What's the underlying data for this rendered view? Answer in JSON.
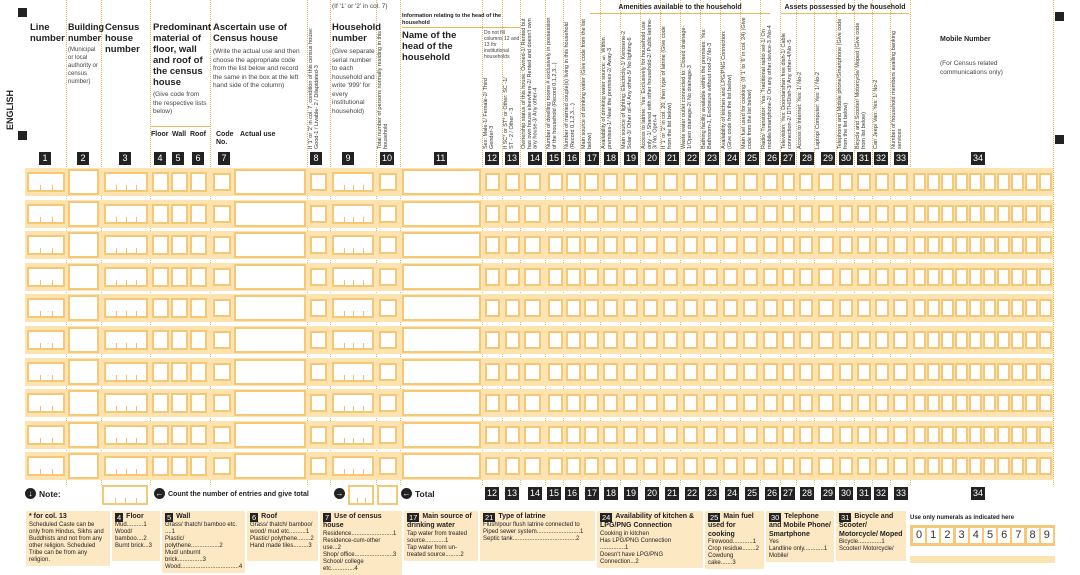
{
  "side_label": "ENGLISH",
  "top_note": "(If '1' or '2' in col. 7)",
  "group_head": "Information relating to the head of the household",
  "group_head_note": "Do not fill columns 12 and 13 for institutional households",
  "group_amenities": "Amenities available to the household",
  "group_assets": "Assets possessed by the household",
  "headers": {
    "c1": "Line number",
    "c2": "Building number",
    "c2_sub": "(Municipal or local authority or census number)",
    "c3": "Census house number",
    "c4_6": "Predominant material of floor, wall and roof of the census house",
    "c4_6_sub": "(Give code from the respective lists below)",
    "c4": "Floor",
    "c5": "Wall",
    "c6": "Roof",
    "c7": "Ascertain use of Census house",
    "c7_sub": "(Write the actual use and then choose the appropriate code from the list below and record the same in the box at the left hand side of the column)",
    "c7_code": "Code No.",
    "c7_actual": "Actual use",
    "c9": "Household number",
    "c9_sub": "(Give separate serial number to each household and write '999' for every institutional household)",
    "c11": "Name of the head of the household",
    "c34": "Mobile Number",
    "c34_sub": "(For Census related communications only)"
  },
  "vertical_headers": {
    "c8": "If '1' or '2' in col. 7, condition of this census house: Good-1 / Livable- 2 / Dilapidated-3",
    "c10": "Total number of persons normally residing in this household",
    "c12": "Sex: Male-1/ Female-2/ Third Gender-3",
    "c13": "If SC* or ST* or Other: SC -1/ ST - 2 / Other - 3",
    "c14": "Ownership status of this house: Owned-1/ Rented but has own house elsewhere-2/ Rented and doesn't own any house-3/ Any other-4",
    "c15": "Number of dwelling rooms # exclusively in possession of the household (Record 0,1,2,3...)",
    "c16": "Number of married couple(s) living in this household (Record 0,1,2,3....)",
    "c17": "Main source of drinking water (Give code from the list below)",
    "c18": "Availability of drinking water source: § Within premises-1/ Near the premises-2/ Away-3",
    "c19": "Main source of lighting: Electricity-1/ Kerosene-2 Solar-3/ Other oil-4/ Any other-5/ No lighting-6",
    "c20": "Access to latrine: Yes: Exclusively for household use only -1/ Shared with other household-2/ Public latrine-3/ No: Open-4",
    "c21": "If '1' or '2' in col. 20, then type of latrine (Give code from the list below)",
    "c22": "Waste water outlet connected to: Closed drainage-1/Open drainage-2/ No drainage-3",
    "c23": "Bathing facility available within the premises: Yes: Bathroom-1, Enclosure without roof-2/ No-3",
    "c24": "Availability of kitchen and LPG/PNG Connection: (Give code from the list below)",
    "c25": "Main fuel used for cooking: (If '1' to '6' in col. 24) (Give code from the list below)",
    "c26": "Radio/ Transistor: Yes: Traditional radio set-1/ On mobile/smartphone-2/ On any other device-3 /No-4",
    "c27": "Television: Yes: Doordarshan free dish-1/ Cable connection-2/ DTH/Dish-3/ Any other-4/No -5",
    "c28": "Access to Internet: Yes: 1/ No-2",
    "c29": "Laptop/ Computer: Yes: 1/ No-2",
    "c30": "Telephone and Mobile phone/Smartphone (Give code from the list below)",
    "c31": "Bicycle and Scooter/ Motorcycle/ Moped (Give code from list below)",
    "c32": "Car/ Jeep/ Van: Yes: 1/ No-2",
    "c33": "Number of household members availing banking services"
  },
  "column_numbers": [
    "1",
    "2",
    "3",
    "4",
    "5",
    "6",
    "7",
    "8",
    "9",
    "10",
    "11",
    "12",
    "13",
    "14",
    "15",
    "16",
    "17",
    "18",
    "19",
    "20",
    "21",
    "22",
    "23",
    "24",
    "25",
    "26",
    "27",
    "28",
    "29",
    "30",
    "31",
    "32",
    "33",
    "34"
  ],
  "row_count": 10,
  "footer": {
    "note": "Note:",
    "count_text": "Count the number of entries and give total",
    "total": "Total"
  },
  "legends": {
    "col13": {
      "title": "* for col. 13",
      "text": "Scheduled Caste can be only from Hindus, Sikhs and Buddhists and not from any other religion. Scheduled Tribe can be from any religion."
    },
    "floor": {
      "num": "4",
      "title": "Floor",
      "items": [
        "Mud..........1",
        "Wood/ bamboo....2",
        "Burnt brick...3"
      ]
    },
    "wall": {
      "num": "5",
      "title": "Wall",
      "items": [
        "Grass/ thatch/ bamboo etc. ....1",
        "Plastic/ polythene.................2",
        "Mud/ unburnt brick...............3",
        "Wood...................................4"
      ]
    },
    "roof": {
      "num": "6",
      "title": "Roof",
      "items": [
        "Grass/ thatch/ bamboo/ wood/ mud etc..........1",
        "Plastic/ polythene........2",
        "Hand made tiles.........3"
      ]
    },
    "use": {
      "num": "7",
      "title": "Use of census house",
      "items": [
        "Residence.........................1",
        "Residence-cum-other use...2",
        "Shop/ office.......................3",
        "School/ college etc..............4"
      ]
    },
    "water": {
      "num": "17",
      "title": "Main source of drinking water",
      "items": [
        "Tap water from treated source............1",
        "Tap water from un-treated source.........2"
      ]
    },
    "latrine": {
      "num": "21",
      "title": "Type of latrine",
      "items": [
        "Flush/pour flush latrine connected to",
        "Piped sewer system..........................1",
        "Septic tank......................................2"
      ]
    },
    "kitchen": {
      "num": "24",
      "title": "Availability of kitchen & LPG/PNG Connection",
      "items": [
        "Cooking in kitchen",
        "Has LPG/PNG Connection ...............1",
        "Doesn't have LPG/PNG Connection...2"
      ]
    },
    "fuel": {
      "num": "25",
      "title": "Main fuel used for cooking",
      "items": [
        "Firewood............1",
        "Crop residue........2",
        "Cowdung cake.......3"
      ]
    },
    "phone": {
      "num": "30",
      "title": "Telephone and Mobile Phone/ Smartphone",
      "items": [
        "Yes",
        "Landline only............1",
        "Mobile/"
      ]
    },
    "bike": {
      "num": "31",
      "title": "Bicycle and Scooter/ Motorcycle/ Moped",
      "items": [
        "Bicycle..............1",
        "Scooter/ Motorcycle/"
      ]
    }
  },
  "numerals_label": "Use only numerals as indicated here",
  "numerals": [
    "0",
    "1",
    "2",
    "3",
    "4",
    "5",
    "6",
    "7",
    "8",
    "9"
  ],
  "colors": {
    "band": "#fde3b0",
    "box_border": "#f5c878",
    "legend_bg": "#fde8c4",
    "dark": "#222222"
  }
}
